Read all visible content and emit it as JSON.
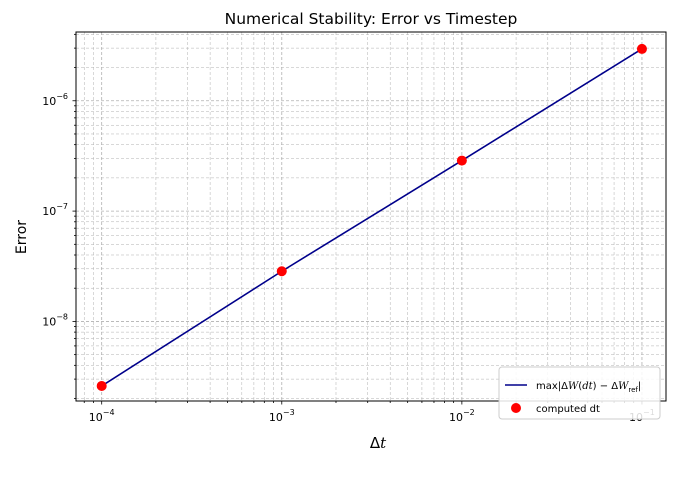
{
  "chart_data": {
    "type": "line",
    "title": "Numerical Stability: Error vs Timestep",
    "xlabel": "Δt",
    "ylabel": "Error",
    "xscale": "log",
    "yscale": "log",
    "xlim": [
      7.2e-05,
      0.136
    ],
    "ylim": [
      1.9e-09,
      4.2e-06
    ],
    "grid": true,
    "grid_which": "both",
    "legend_position": "lower-right",
    "x_ticks": [
      {
        "value": 0.0001,
        "base": "10",
        "exp": "−4"
      },
      {
        "value": 0.001,
        "base": "10",
        "exp": "−3"
      },
      {
        "value": 0.01,
        "base": "10",
        "exp": "−2"
      },
      {
        "value": 0.1,
        "base": "10",
        "exp": "−1"
      }
    ],
    "y_ticks": [
      {
        "value": 1e-08,
        "base": "10",
        "exp": "−8"
      },
      {
        "value": 1e-07,
        "base": "10",
        "exp": "−7"
      },
      {
        "value": 1e-06,
        "base": "10",
        "exp": "−6"
      }
    ],
    "series": [
      {
        "name": "max|ΔW(dt) − ΔW_ref|",
        "kind": "line",
        "color": "#00008b",
        "x": [
          0.0001,
          0.001,
          0.01,
          0.1
        ],
        "y": [
          2.6e-09,
          2.85e-08,
          2.87e-07,
          2.95e-06
        ]
      },
      {
        "name": "computed dt",
        "kind": "scatter",
        "color": "#ff0000",
        "x": [
          0.0001,
          0.001,
          0.01,
          0.1
        ],
        "y": [
          2.6e-09,
          2.85e-08,
          2.87e-07,
          2.95e-06
        ]
      }
    ]
  }
}
